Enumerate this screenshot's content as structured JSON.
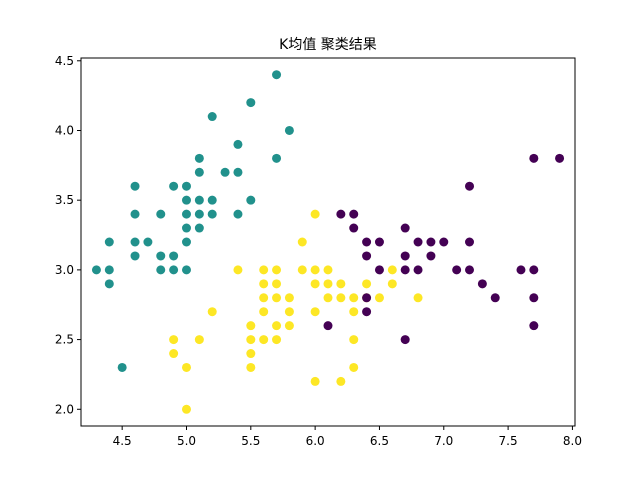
{
  "chart_data": {
    "type": "scatter",
    "title": "K均值 聚类结果",
    "xlabel": "",
    "ylabel": "",
    "xlim": [
      4.18,
      8.02
    ],
    "ylim": [
      1.88,
      4.52
    ],
    "xticks": [
      4.5,
      5.0,
      5.5,
      6.0,
      6.5,
      7.0,
      7.5,
      8.0
    ],
    "yticks": [
      2.0,
      2.5,
      3.0,
      3.5,
      4.0,
      4.5
    ],
    "xtick_labels": [
      "4.5",
      "5.0",
      "5.5",
      "6.0",
      "6.5",
      "7.0",
      "7.5",
      "8.0"
    ],
    "ytick_labels": [
      "2.0",
      "2.5",
      "3.0",
      "3.5",
      "4.0",
      "4.5"
    ],
    "grid": false,
    "legend": "none",
    "colors": {
      "cluster_0": "#440154",
      "cluster_1": "#21918c",
      "cluster_2": "#fde725"
    },
    "series": [
      {
        "color_key": "cluster_1",
        "points": [
          [
            4.3,
            3.0
          ],
          [
            4.4,
            3.2
          ],
          [
            4.4,
            3.0
          ],
          [
            4.4,
            2.9
          ],
          [
            4.5,
            2.3
          ],
          [
            4.6,
            3.6
          ],
          [
            4.6,
            3.4
          ],
          [
            4.6,
            3.2
          ],
          [
            4.6,
            3.1
          ],
          [
            4.7,
            3.2
          ],
          [
            4.8,
            3.4
          ],
          [
            4.8,
            3.1
          ],
          [
            4.8,
            3.0
          ],
          [
            4.9,
            3.6
          ],
          [
            4.9,
            3.1
          ],
          [
            4.9,
            3.0
          ],
          [
            5.0,
            3.6
          ],
          [
            5.0,
            3.5
          ],
          [
            5.0,
            3.4
          ],
          [
            5.0,
            3.3
          ],
          [
            5.0,
            3.2
          ],
          [
            5.0,
            3.0
          ],
          [
            5.1,
            3.8
          ],
          [
            5.1,
            3.7
          ],
          [
            5.1,
            3.5
          ],
          [
            5.1,
            3.4
          ],
          [
            5.1,
            3.3
          ],
          [
            5.2,
            4.1
          ],
          [
            5.2,
            3.5
          ],
          [
            5.2,
            3.4
          ],
          [
            5.3,
            3.7
          ],
          [
            5.4,
            3.9
          ],
          [
            5.4,
            3.7
          ],
          [
            5.4,
            3.4
          ],
          [
            5.5,
            4.2
          ],
          [
            5.5,
            3.5
          ],
          [
            5.7,
            4.4
          ],
          [
            5.7,
            3.8
          ],
          [
            5.8,
            4.0
          ]
        ]
      },
      {
        "color_key": "cluster_2",
        "points": [
          [
            4.9,
            2.5
          ],
          [
            4.9,
            2.4
          ],
          [
            5.0,
            2.3
          ],
          [
            5.0,
            2.0
          ],
          [
            5.1,
            2.5
          ],
          [
            5.2,
            2.7
          ],
          [
            5.4,
            3.0
          ],
          [
            5.5,
            2.6
          ],
          [
            5.5,
            2.5
          ],
          [
            5.5,
            2.4
          ],
          [
            5.5,
            2.3
          ],
          [
            5.6,
            3.0
          ],
          [
            5.6,
            2.9
          ],
          [
            5.6,
            2.8
          ],
          [
            5.6,
            2.7
          ],
          [
            5.6,
            2.5
          ],
          [
            5.7,
            3.0
          ],
          [
            5.7,
            2.9
          ],
          [
            5.7,
            2.8
          ],
          [
            5.7,
            2.6
          ],
          [
            5.7,
            2.5
          ],
          [
            5.8,
            2.8
          ],
          [
            5.8,
            2.7
          ],
          [
            5.8,
            2.6
          ],
          [
            5.9,
            3.2
          ],
          [
            5.9,
            3.0
          ],
          [
            6.0,
            3.4
          ],
          [
            6.0,
            3.0
          ],
          [
            6.0,
            2.9
          ],
          [
            6.0,
            2.7
          ],
          [
            6.0,
            2.2
          ],
          [
            6.1,
            3.0
          ],
          [
            6.1,
            2.9
          ],
          [
            6.1,
            2.8
          ],
          [
            6.2,
            2.9
          ],
          [
            6.2,
            2.8
          ],
          [
            6.2,
            2.2
          ],
          [
            6.3,
            2.8
          ],
          [
            6.3,
            2.7
          ],
          [
            6.3,
            2.5
          ],
          [
            6.3,
            2.3
          ],
          [
            6.4,
            2.9
          ],
          [
            6.4,
            2.8
          ],
          [
            6.5,
            2.8
          ],
          [
            6.6,
            3.0
          ],
          [
            6.6,
            2.9
          ],
          [
            6.8,
            2.8
          ]
        ]
      },
      {
        "color_key": "cluster_0",
        "points": [
          [
            6.1,
            2.6
          ],
          [
            6.2,
            3.4
          ],
          [
            6.3,
            3.4
          ],
          [
            6.3,
            3.3
          ],
          [
            6.4,
            3.2
          ],
          [
            6.4,
            3.1
          ],
          [
            6.4,
            2.8
          ],
          [
            6.4,
            2.7
          ],
          [
            6.5,
            3.2
          ],
          [
            6.5,
            3.0
          ],
          [
            6.7,
            3.3
          ],
          [
            6.7,
            3.1
          ],
          [
            6.7,
            3.0
          ],
          [
            6.7,
            2.5
          ],
          [
            6.8,
            3.2
          ],
          [
            6.8,
            3.0
          ],
          [
            6.9,
            3.2
          ],
          [
            6.9,
            3.1
          ],
          [
            7.0,
            3.2
          ],
          [
            7.1,
            3.0
          ],
          [
            7.2,
            3.6
          ],
          [
            7.2,
            3.2
          ],
          [
            7.2,
            3.0
          ],
          [
            7.3,
            2.9
          ],
          [
            7.4,
            2.8
          ],
          [
            7.6,
            3.0
          ],
          [
            7.7,
            3.8
          ],
          [
            7.7,
            3.0
          ],
          [
            7.7,
            2.8
          ],
          [
            7.7,
            2.6
          ],
          [
            7.9,
            3.8
          ]
        ]
      }
    ]
  }
}
